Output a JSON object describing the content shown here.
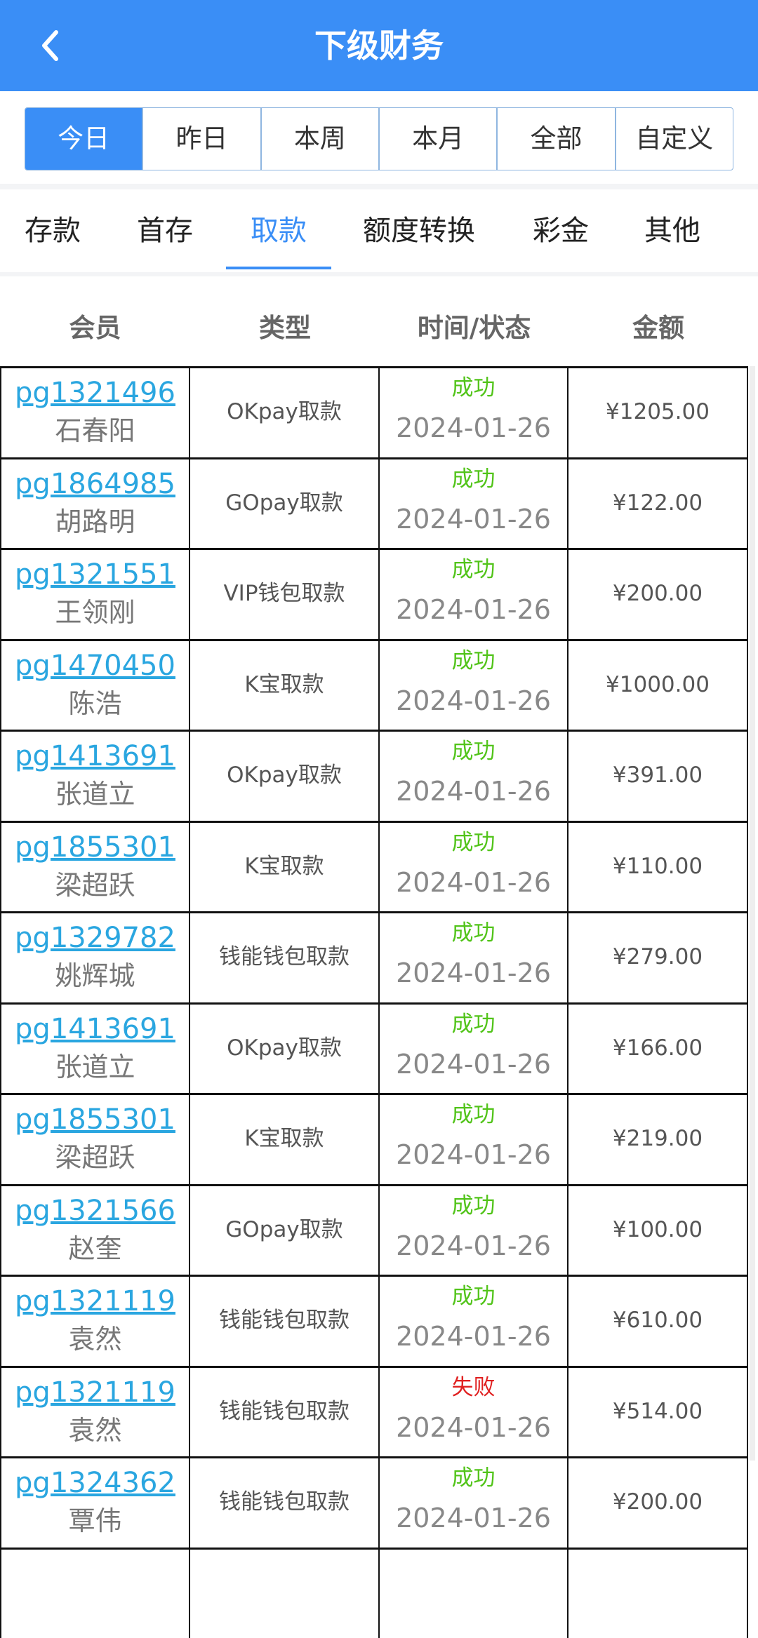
{
  "header": {
    "title": "下级财务",
    "back_icon": "chevron-left-icon"
  },
  "periods": [
    {
      "label": "今日",
      "active": true
    },
    {
      "label": "昨日",
      "active": false
    },
    {
      "label": "本周",
      "active": false
    },
    {
      "label": "本月",
      "active": false
    },
    {
      "label": "全部",
      "active": false
    },
    {
      "label": "自定义",
      "active": false
    }
  ],
  "categories": [
    {
      "label": "存款",
      "active": false
    },
    {
      "label": "首存",
      "active": false
    },
    {
      "label": "取款",
      "active": true
    },
    {
      "label": "额度转换",
      "active": false
    },
    {
      "label": "彩金",
      "active": false
    },
    {
      "label": "其他",
      "active": false
    }
  ],
  "table": {
    "columns": [
      "会员",
      "类型",
      "时间/状态",
      "金额"
    ],
    "rows": [
      {
        "member": "pg1321496",
        "name": "石春阳",
        "type": "OKpay取款",
        "status": "成功",
        "date": "2024-01-26",
        "amount": "¥1205.00"
      },
      {
        "member": "pg1864985",
        "name": "胡路明",
        "type": "GOpay取款",
        "status": "成功",
        "date": "2024-01-26",
        "amount": "¥122.00"
      },
      {
        "member": "pg1321551",
        "name": "王领刚",
        "type": "VIP钱包取款",
        "status": "成功",
        "date": "2024-01-26",
        "amount": "¥200.00"
      },
      {
        "member": "pg1470450",
        "name": "陈浩",
        "type": "K宝取款",
        "status": "成功",
        "date": "2024-01-26",
        "amount": "¥1000.00"
      },
      {
        "member": "pg1413691",
        "name": "张道立",
        "type": "OKpay取款",
        "status": "成功",
        "date": "2024-01-26",
        "amount": "¥391.00"
      },
      {
        "member": "pg1855301",
        "name": "梁超跃",
        "type": "K宝取款",
        "status": "成功",
        "date": "2024-01-26",
        "amount": "¥110.00"
      },
      {
        "member": "pg1329782",
        "name": "姚辉城",
        "type": "钱能钱包取款",
        "status": "成功",
        "date": "2024-01-26",
        "amount": "¥279.00"
      },
      {
        "member": "pg1413691",
        "name": "张道立",
        "type": "OKpay取款",
        "status": "成功",
        "date": "2024-01-26",
        "amount": "¥166.00"
      },
      {
        "member": "pg1855301",
        "name": "梁超跃",
        "type": "K宝取款",
        "status": "成功",
        "date": "2024-01-26",
        "amount": "¥219.00"
      },
      {
        "member": "pg1321566",
        "name": "赵奎",
        "type": "GOpay取款",
        "status": "成功",
        "date": "2024-01-26",
        "amount": "¥100.00"
      },
      {
        "member": "pg1321119",
        "name": "袁然",
        "type": "钱能钱包取款",
        "status": "成功",
        "date": "2024-01-26",
        "amount": "¥610.00"
      },
      {
        "member": "pg1321119",
        "name": "袁然",
        "type": "钱能钱包取款",
        "status": "失败",
        "date": "2024-01-26",
        "amount": "¥514.00"
      },
      {
        "member": "pg1324362",
        "name": "覃伟",
        "type": "钱能钱包取款",
        "status": "成功",
        "date": "2024-01-26",
        "amount": "¥200.00"
      }
    ]
  },
  "colors": {
    "accent": "#3a8ef6",
    "success": "#52c41a",
    "fail": "#e02020",
    "link": "#2aa6e0"
  }
}
